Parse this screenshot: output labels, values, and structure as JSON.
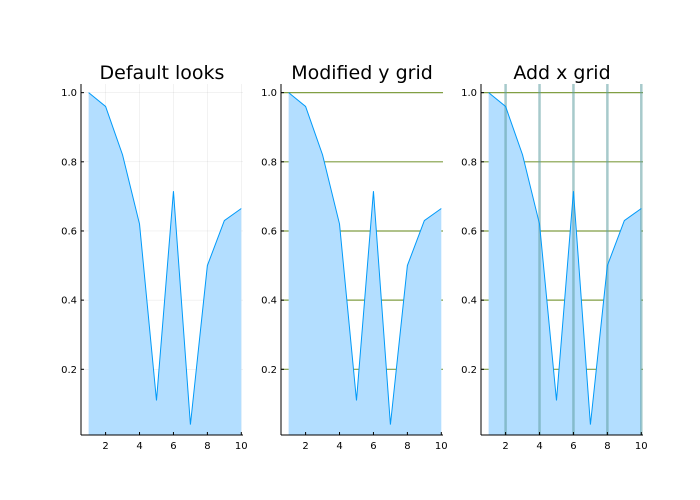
{
  "chart_data": [
    {
      "type": "area",
      "title": "Default looks",
      "x": [
        1,
        2,
        3,
        4,
        5,
        6,
        7,
        8,
        9,
        10
      ],
      "series": [
        {
          "values": [
            1.0,
            0.96,
            0.82,
            0.62,
            0.11,
            0.715,
            0.04,
            0.5,
            0.63,
            0.665
          ]
        }
      ],
      "xlim": [
        0.55,
        10.1
      ],
      "ylim": [
        0.01,
        1.025
      ],
      "xticks": [
        2,
        4,
        6,
        8,
        10
      ],
      "yticks": [
        0.2,
        0.4,
        0.6,
        0.8,
        1.0
      ],
      "xtick_labels": [
        "2",
        "4",
        "6",
        "8",
        "10"
      ],
      "ytick_labels": [
        "0.2",
        "0.4",
        "0.6",
        "0.8",
        "1.0"
      ],
      "xgrid": "faint",
      "ygrid": "faint",
      "line_color": "#009af9",
      "fill_color": "#b3deff"
    },
    {
      "type": "area",
      "title": "Modified y grid",
      "x": [
        1,
        2,
        3,
        4,
        5,
        6,
        7,
        8,
        9,
        10
      ],
      "series": [
        {
          "values": [
            1.0,
            0.96,
            0.82,
            0.62,
            0.11,
            0.715,
            0.04,
            0.5,
            0.63,
            0.665
          ]
        }
      ],
      "xlim": [
        0.55,
        10.1
      ],
      "ylim": [
        0.01,
        1.025
      ],
      "xticks": [
        2,
        4,
        6,
        8,
        10
      ],
      "yticks": [
        0.2,
        0.4,
        0.6,
        0.8,
        1.0
      ],
      "xtick_labels": [
        "2",
        "4",
        "6",
        "8",
        "10"
      ],
      "ytick_labels": [
        "0.2",
        "0.4",
        "0.6",
        "0.8",
        "1.0"
      ],
      "xgrid": "none",
      "ygrid": "olive",
      "grid_color": "#6b8e23",
      "line_color": "#009af9",
      "fill_color": "#b3deff"
    },
    {
      "type": "area",
      "title": "Add x grid",
      "x": [
        1,
        2,
        3,
        4,
        5,
        6,
        7,
        8,
        9,
        10
      ],
      "series": [
        {
          "values": [
            1.0,
            0.96,
            0.82,
            0.62,
            0.11,
            0.715,
            0.04,
            0.5,
            0.63,
            0.665
          ]
        }
      ],
      "xlim": [
        0.55,
        10.1
      ],
      "ylim": [
        0.01,
        1.025
      ],
      "xticks": [
        2,
        4,
        6,
        8,
        10
      ],
      "yticks": [
        0.2,
        0.4,
        0.6,
        0.8,
        1.0
      ],
      "xtick_labels": [
        "2",
        "4",
        "6",
        "8",
        "10"
      ],
      "ytick_labels": [
        "0.2",
        "0.4",
        "0.6",
        "0.8",
        "1.0"
      ],
      "xgrid": "thick",
      "ygrid": "olive",
      "grid_color": "#6b8e23",
      "xgrid_color": "#5f9ea0",
      "line_color": "#009af9",
      "fill_color": "#b3deff"
    }
  ]
}
